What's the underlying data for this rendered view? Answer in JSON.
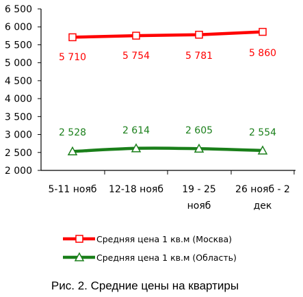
{
  "chart_data": {
    "type": "line",
    "categories": [
      [
        "5-11 нояб"
      ],
      [
        "12-18 нояб"
      ],
      [
        "19 - 25",
        "нояб"
      ],
      [
        "26 нояб - 2",
        "дек"
      ]
    ],
    "ylim": [
      2000,
      6500
    ],
    "yticks": [
      "6 500",
      "6 000",
      "5 500",
      "5 000",
      "4 500",
      "4 000",
      "3 500",
      "3 000",
      "2 500",
      "2 000"
    ],
    "ytick_values": [
      6500,
      6000,
      5500,
      5000,
      4500,
      4000,
      3500,
      3000,
      2500,
      2000
    ],
    "grid": false,
    "legend_position": "bottom",
    "series": [
      {
        "name": "Средняя цена 1 кв.м (Москва)",
        "values": [
          5710,
          5754,
          5781,
          5860
        ],
        "labels": [
          "5 710",
          "5 754",
          "5 781",
          "5 860"
        ],
        "color": "#ff0000",
        "label_color": "#ff0000",
        "marker": "square"
      },
      {
        "name": "Средняя цена 1 кв.м (Область)",
        "values": [
          2528,
          2614,
          2605,
          2554
        ],
        "labels": [
          "2 528",
          "2 614",
          "2 605",
          "2 554"
        ],
        "color": "#1a7f1a",
        "label_color": "#1a7f1a",
        "marker": "triangle"
      }
    ]
  },
  "caption": "Рис. 2. Средние цены на квартиры"
}
